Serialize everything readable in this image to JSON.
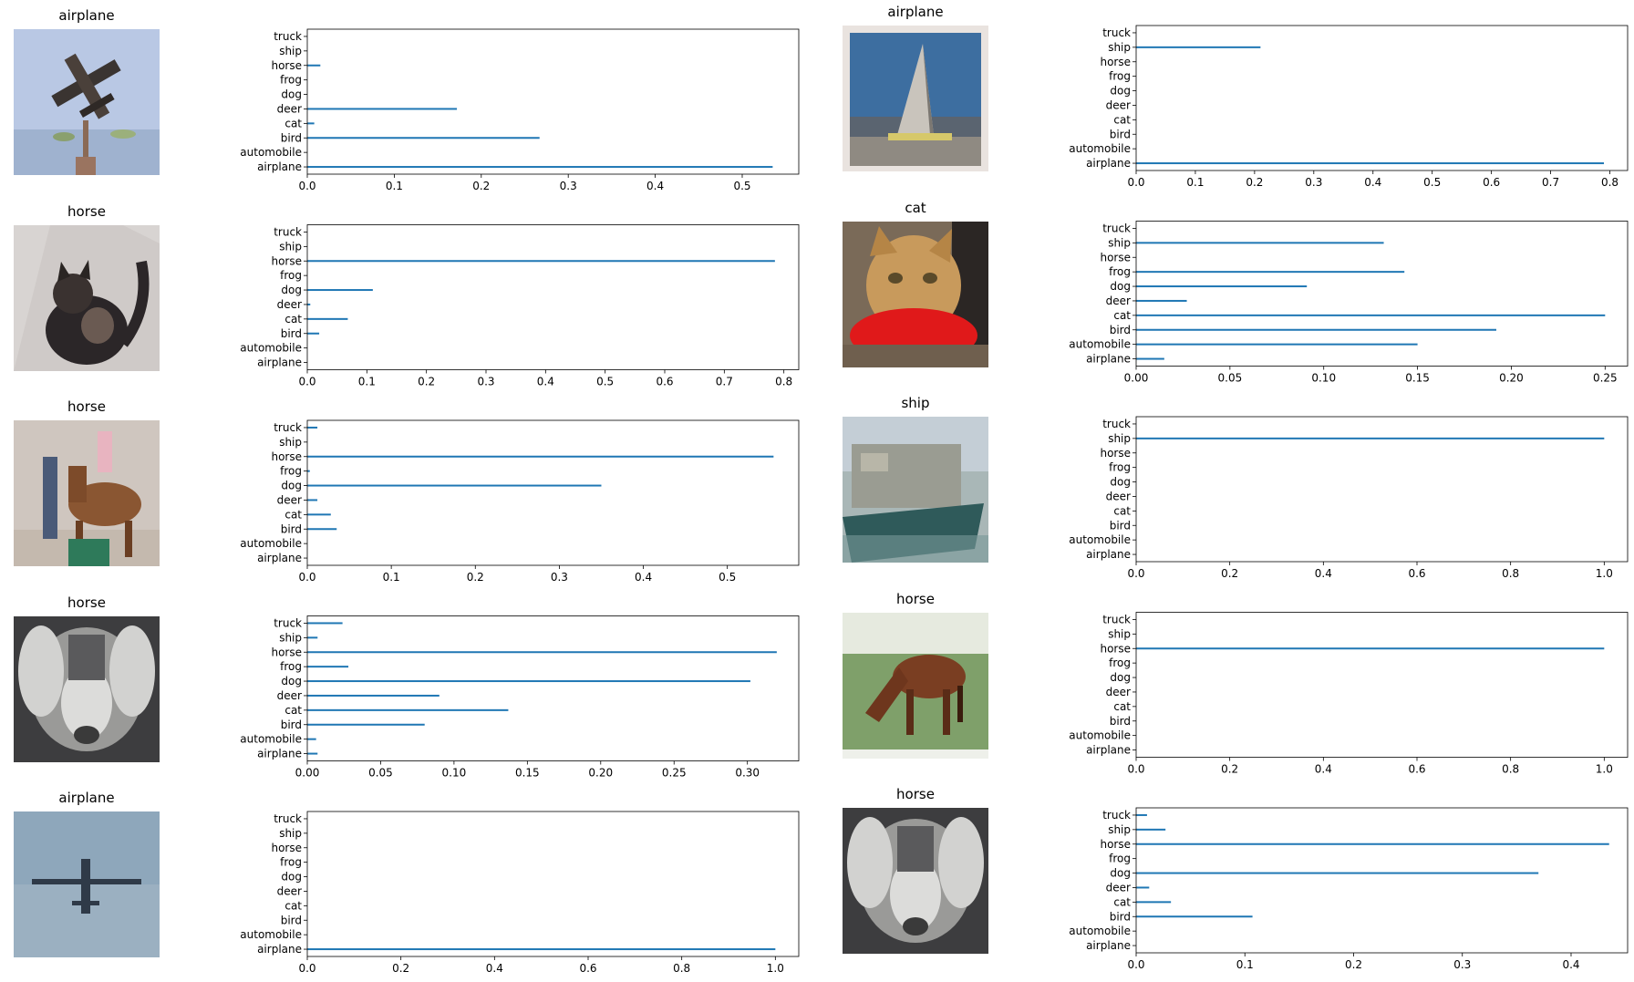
{
  "classes": [
    "airplane",
    "automobile",
    "bird",
    "cat",
    "deer",
    "dog",
    "frog",
    "horse",
    "ship",
    "truck"
  ],
  "bar_color": "#1f77b4",
  "chart_data": [
    {
      "type": "bar",
      "orientation": "horizontal",
      "image_label": "airplane",
      "image_subject": "airplane",
      "categories": [
        "airplane",
        "automobile",
        "bird",
        "cat",
        "deer",
        "dog",
        "frog",
        "horse",
        "ship",
        "truck"
      ],
      "values": [
        0.535,
        0.0,
        0.267,
        0.008,
        0.172,
        0.0,
        0.0,
        0.015,
        0.0,
        0.0
      ],
      "xlim": [
        0,
        0.565
      ],
      "xticks": [
        0.0,
        0.1,
        0.2,
        0.3,
        0.4,
        0.5
      ],
      "xtick_labels": [
        "0.0",
        "0.1",
        "0.2",
        "0.3",
        "0.4",
        "0.5"
      ]
    },
    {
      "type": "bar",
      "orientation": "horizontal",
      "image_label": "airplane",
      "image_subject": "sailboat",
      "categories": [
        "airplane",
        "automobile",
        "bird",
        "cat",
        "deer",
        "dog",
        "frog",
        "horse",
        "ship",
        "truck"
      ],
      "values": [
        0.79,
        0.0,
        0.0,
        0.0,
        0.0,
        0.0,
        0.0,
        0.0,
        0.21,
        0.0
      ],
      "xlim": [
        0,
        0.83
      ],
      "xticks": [
        0.0,
        0.1,
        0.2,
        0.3,
        0.4,
        0.5,
        0.6,
        0.7,
        0.8
      ],
      "xtick_labels": [
        "0.0",
        "0.1",
        "0.2",
        "0.3",
        "0.4",
        "0.5",
        "0.6",
        "0.7",
        "0.8"
      ]
    },
    {
      "type": "bar",
      "orientation": "horizontal",
      "image_label": "horse",
      "image_subject": "cat",
      "categories": [
        "airplane",
        "automobile",
        "bird",
        "cat",
        "deer",
        "dog",
        "frog",
        "horse",
        "ship",
        "truck"
      ],
      "values": [
        0.0,
        0.0,
        0.02,
        0.068,
        0.005,
        0.11,
        0.0,
        0.785,
        0.0,
        0.0
      ],
      "xlim": [
        0,
        0.825
      ],
      "xticks": [
        0.0,
        0.1,
        0.2,
        0.3,
        0.4,
        0.5,
        0.6,
        0.7,
        0.8
      ],
      "xtick_labels": [
        "0.0",
        "0.1",
        "0.2",
        "0.3",
        "0.4",
        "0.5",
        "0.6",
        "0.7",
        "0.8"
      ]
    },
    {
      "type": "bar",
      "orientation": "horizontal",
      "image_label": "cat",
      "image_subject": "cat",
      "categories": [
        "airplane",
        "automobile",
        "bird",
        "cat",
        "deer",
        "dog",
        "frog",
        "horse",
        "ship",
        "truck"
      ],
      "values": [
        0.015,
        0.15,
        0.192,
        0.25,
        0.027,
        0.091,
        0.143,
        0.0,
        0.132,
        0.0
      ],
      "xlim": [
        0,
        0.262
      ],
      "xticks": [
        0.0,
        0.05,
        0.1,
        0.15,
        0.2,
        0.25
      ],
      "xtick_labels": [
        "0.00",
        "0.05",
        "0.10",
        "0.15",
        "0.20",
        "0.25"
      ]
    },
    {
      "type": "bar",
      "orientation": "horizontal",
      "image_label": "horse",
      "image_subject": "person with horse",
      "categories": [
        "airplane",
        "automobile",
        "bird",
        "cat",
        "deer",
        "dog",
        "frog",
        "horse",
        "ship",
        "truck"
      ],
      "values": [
        0.0,
        0.0,
        0.035,
        0.028,
        0.012,
        0.35,
        0.003,
        0.555,
        0.0,
        0.012
      ],
      "xlim": [
        0,
        0.585
      ],
      "xticks": [
        0.0,
        0.1,
        0.2,
        0.3,
        0.4,
        0.5
      ],
      "xtick_labels": [
        "0.0",
        "0.1",
        "0.2",
        "0.3",
        "0.4",
        "0.5"
      ]
    },
    {
      "type": "bar",
      "orientation": "horizontal",
      "image_label": "ship",
      "image_subject": "ship",
      "categories": [
        "airplane",
        "automobile",
        "bird",
        "cat",
        "deer",
        "dog",
        "frog",
        "horse",
        "ship",
        "truck"
      ],
      "values": [
        0.0,
        0.0,
        0.0,
        0.0,
        0.0,
        0.0,
        0.0,
        0.0,
        1.0,
        0.0
      ],
      "xlim": [
        0,
        1.05
      ],
      "xticks": [
        0.0,
        0.2,
        0.4,
        0.6,
        0.8,
        1.0
      ],
      "xtick_labels": [
        "0.0",
        "0.2",
        "0.4",
        "0.6",
        "0.8",
        "1.0"
      ]
    },
    {
      "type": "bar",
      "orientation": "horizontal",
      "image_label": "horse",
      "image_subject": "dog",
      "categories": [
        "airplane",
        "automobile",
        "bird",
        "cat",
        "deer",
        "dog",
        "frog",
        "horse",
        "ship",
        "truck"
      ],
      "values": [
        0.007,
        0.006,
        0.08,
        0.137,
        0.09,
        0.302,
        0.028,
        0.32,
        0.007,
        0.024
      ],
      "xlim": [
        0,
        0.335
      ],
      "xticks": [
        0.0,
        0.05,
        0.1,
        0.15,
        0.2,
        0.25,
        0.3
      ],
      "xtick_labels": [
        "0.00",
        "0.05",
        "0.10",
        "0.15",
        "0.20",
        "0.25",
        "0.30"
      ]
    },
    {
      "type": "bar",
      "orientation": "horizontal",
      "image_label": "horse",
      "image_subject": "horse",
      "categories": [
        "airplane",
        "automobile",
        "bird",
        "cat",
        "deer",
        "dog",
        "frog",
        "horse",
        "ship",
        "truck"
      ],
      "values": [
        0.0,
        0.0,
        0.0,
        0.0,
        0.0,
        0.0,
        0.0,
        1.0,
        0.0,
        0.0
      ],
      "xlim": [
        0,
        1.05
      ],
      "xticks": [
        0.0,
        0.2,
        0.4,
        0.6,
        0.8,
        1.0
      ],
      "xtick_labels": [
        "0.0",
        "0.2",
        "0.4",
        "0.6",
        "0.8",
        "1.0"
      ]
    },
    {
      "type": "bar",
      "orientation": "horizontal",
      "image_label": "airplane",
      "image_subject": "airplane in sky",
      "categories": [
        "airplane",
        "automobile",
        "bird",
        "cat",
        "deer",
        "dog",
        "frog",
        "horse",
        "ship",
        "truck"
      ],
      "values": [
        1.0,
        0.0,
        0.0,
        0.0,
        0.0,
        0.0,
        0.0,
        0.0,
        0.0,
        0.0
      ],
      "xlim": [
        0,
        1.05
      ],
      "xticks": [
        0.0,
        0.2,
        0.4,
        0.6,
        0.8,
        1.0
      ],
      "xtick_labels": [
        "0.0",
        "0.2",
        "0.4",
        "0.6",
        "0.8",
        "1.0"
      ]
    },
    {
      "type": "bar",
      "orientation": "horizontal",
      "image_label": "horse",
      "image_subject": "dog",
      "categories": [
        "airplane",
        "automobile",
        "bird",
        "cat",
        "deer",
        "dog",
        "frog",
        "horse",
        "ship",
        "truck"
      ],
      "values": [
        0.0,
        0.0,
        0.107,
        0.032,
        0.012,
        0.37,
        0.0,
        0.435,
        0.027,
        0.01
      ],
      "xlim": [
        0,
        0.452
      ],
      "xticks": [
        0.0,
        0.1,
        0.2,
        0.3,
        0.4
      ],
      "xtick_labels": [
        "0.0",
        "0.1",
        "0.2",
        "0.3",
        "0.4"
      ]
    }
  ]
}
